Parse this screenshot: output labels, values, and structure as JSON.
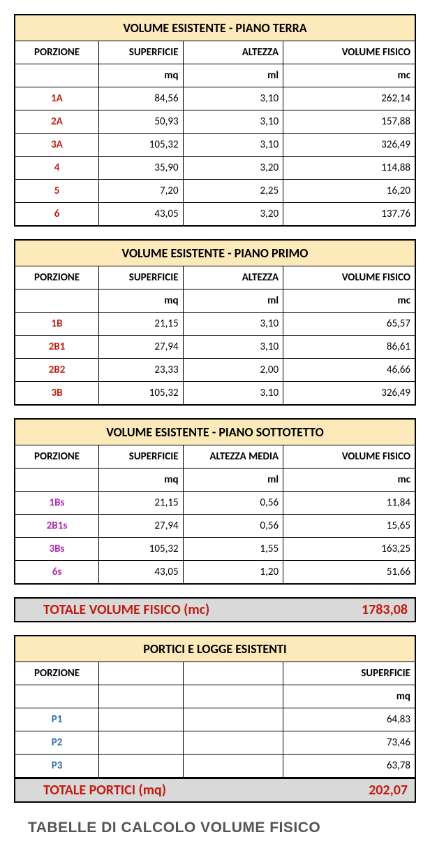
{
  "colors": {
    "header_bg": "#fdeaba",
    "total_bg": "#d9d9d9",
    "red": "#c11c13",
    "magenta": "#b02bb0",
    "blue": "#2f6fa8",
    "border": "#000000",
    "footer_text": "#555555"
  },
  "labels": {
    "porzione": "PORZIONE",
    "superficie": "SUPERFICIE",
    "altezza": "ALTEZZA",
    "altezza_media": "ALTEZZA MEDIA",
    "volume_fisico": "VOLUME FISICO",
    "mq": "mq",
    "ml": "ml",
    "mc": "mc"
  },
  "t1": {
    "title": "VOLUME ESISTENTE - PIANO TERRA",
    "rows": [
      {
        "p": "1A",
        "s": "84,56",
        "a": "3,10",
        "v": "262,14"
      },
      {
        "p": "2A",
        "s": "50,93",
        "a": "3,10",
        "v": "157,88"
      },
      {
        "p": "3A",
        "s": "105,32",
        "a": "3,10",
        "v": "326,49"
      },
      {
        "p": "4",
        "s": "35,90",
        "a": "3,20",
        "v": "114,88"
      },
      {
        "p": "5",
        "s": "7,20",
        "a": "2,25",
        "v": "16,20"
      },
      {
        "p": "6",
        "s": "43,05",
        "a": "3,20",
        "v": "137,76"
      }
    ]
  },
  "t2": {
    "title": "VOLUME ESISTENTE - PIANO PRIMO",
    "rows": [
      {
        "p": "1B",
        "s": "21,15",
        "a": "3,10",
        "v": "65,57"
      },
      {
        "p": "2B1",
        "s": "27,94",
        "a": "3,10",
        "v": "86,61"
      },
      {
        "p": "2B2",
        "s": "23,33",
        "a": "2,00",
        "v": "46,66"
      },
      {
        "p": "3B",
        "s": "105,32",
        "a": "3,10",
        "v": "326,49"
      }
    ]
  },
  "t3": {
    "title": "VOLUME ESISTENTE - PIANO SOTTOTETTO",
    "rows": [
      {
        "p": "1Bs",
        "s": "21,15",
        "a": "0,56",
        "v": "11,84"
      },
      {
        "p": "2B1s",
        "s": "27,94",
        "a": "0,56",
        "v": "15,65"
      },
      {
        "p": "3Bs",
        "s": "105,32",
        "a": "1,55",
        "v": "163,25"
      },
      {
        "p": "6s",
        "s": "43,05",
        "a": "1,20",
        "v": "51,66"
      }
    ]
  },
  "tot1": {
    "label": "TOTALE VOLUME FISICO (mc)",
    "value": "1783,08"
  },
  "t4": {
    "title": "PORTICI E LOGGE ESISTENTI",
    "rows": [
      {
        "p": "P1",
        "s": "64,83"
      },
      {
        "p": "P2",
        "s": "73,46"
      },
      {
        "p": "P3",
        "s": "63,78"
      }
    ]
  },
  "tot2": {
    "label": "TOTALE PORTICI (mq)",
    "value": "202,07"
  },
  "footer": "TABELLE DI CALCOLO VOLUME FISICO"
}
